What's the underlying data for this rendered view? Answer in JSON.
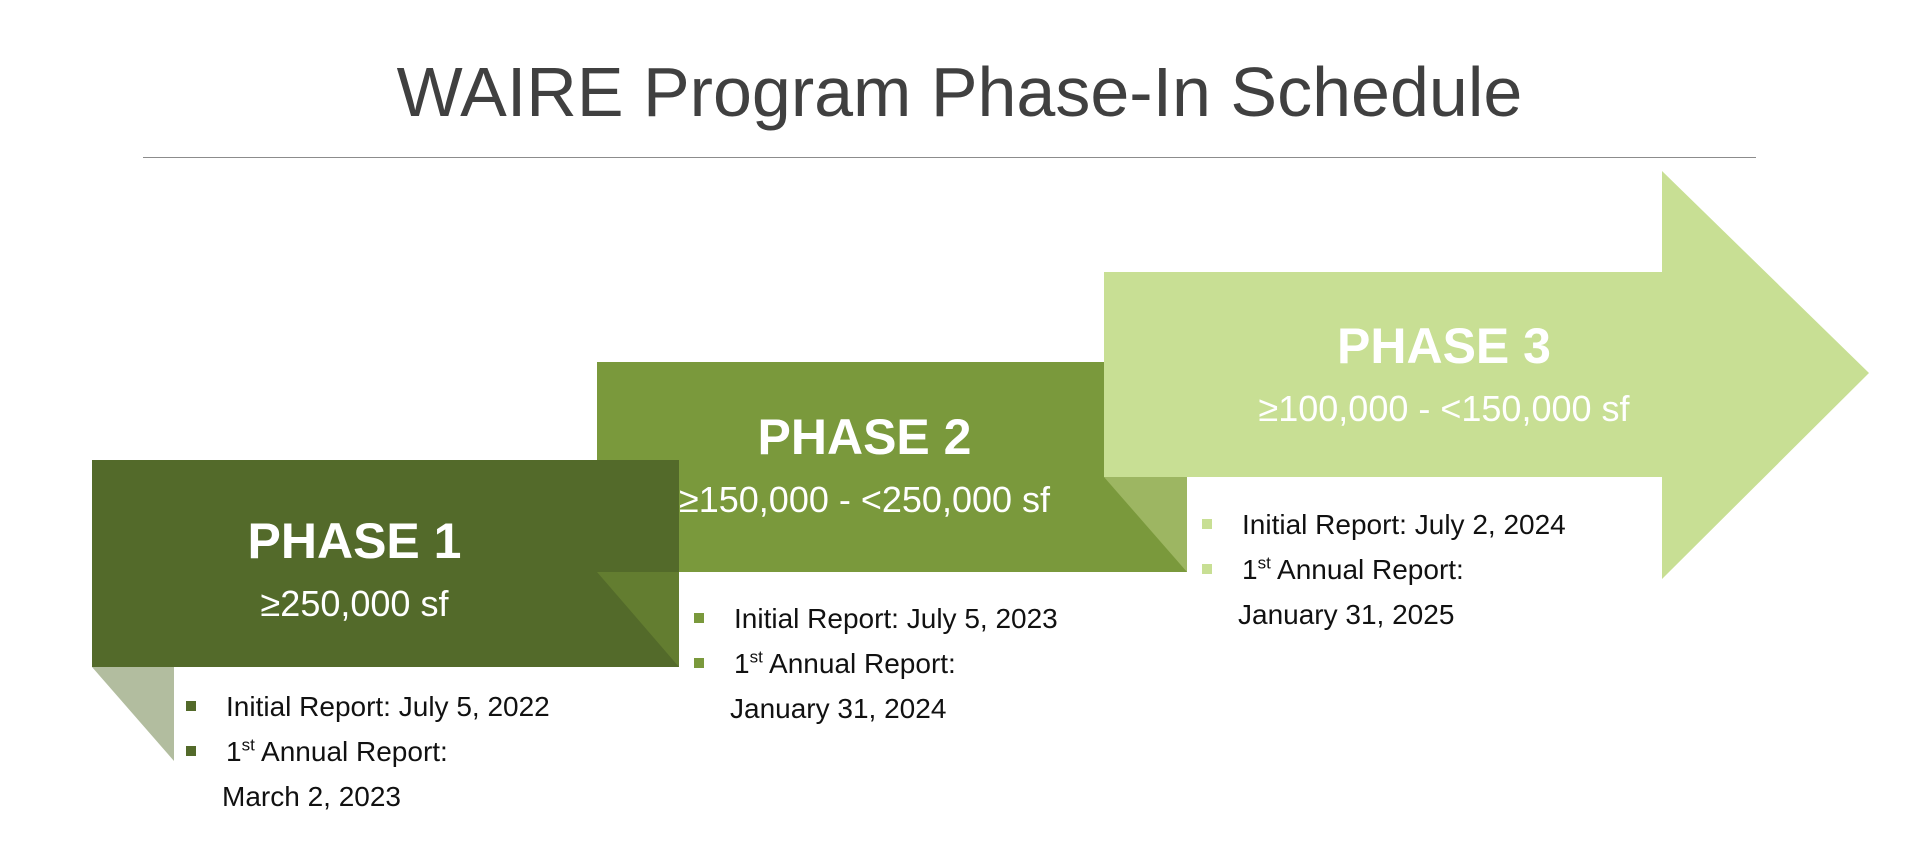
{
  "title": "WAIRE Program Phase-In Schedule",
  "colors": {
    "phase1": "#536a2a",
    "phase2": "#7a993c",
    "phase3": "#c8df94",
    "fold1": "#b2bd9f",
    "fold2": "#637d30",
    "fold3": "#9db662",
    "title": "#404040"
  },
  "phases": [
    {
      "label": "PHASE 1",
      "range": "≥250,000 sf",
      "initial": "Initial Report: July 5, 2022",
      "annual_num": "1",
      "annual_sup": "st",
      "annual_label": " Annual Report:",
      "annual_date": "March 2, 2023"
    },
    {
      "label": "PHASE 2",
      "range": "≥150,000 - <250,000 sf",
      "initial": "Initial Report: July 5, 2023",
      "annual_num": "1",
      "annual_sup": "st",
      "annual_label": " Annual Report:",
      "annual_date": "January 31, 2024"
    },
    {
      "label": "PHASE 3",
      "range": "≥100,000 - <150,000 sf",
      "initial": "Initial Report: July 2, 2024",
      "annual_num": "1",
      "annual_sup": "st",
      "annual_label": " Annual Report:",
      "annual_date": "January 31, 2025"
    }
  ]
}
